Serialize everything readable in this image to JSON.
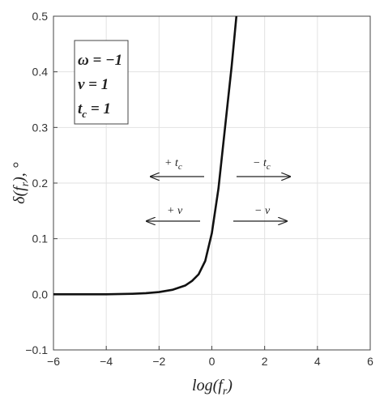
{
  "chart_data": {
    "type": "line",
    "x_label": {
      "main": "log(f",
      "sub": "r",
      "after": ")"
    },
    "y_label": {
      "main": "δ(f",
      "sub": "r",
      "after": "),  °"
    },
    "x": [
      -6,
      -5,
      -4,
      -3,
      -2.5,
      -2,
      -1.5,
      -1,
      -0.75,
      -0.5,
      -0.25,
      0,
      0.25,
      0.5,
      0.75,
      0.93
    ],
    "values": [
      0,
      0,
      0,
      0.001,
      0.002,
      0.004,
      0.008,
      0.016,
      0.024,
      0.036,
      0.06,
      0.11,
      0.19,
      0.3,
      0.41,
      0.5
    ],
    "color": "#111111",
    "xlim": [
      -6,
      6
    ],
    "ylim": [
      -0.1,
      0.5
    ],
    "xticks": [
      {
        "value": -6,
        "label": "−6"
      },
      {
        "value": -4,
        "label": "−4"
      },
      {
        "value": -2,
        "label": "−2"
      },
      0,
      2,
      4,
      6
    ],
    "yticks": [
      {
        "value": -0.1,
        "label": "−0.1"
      },
      {
        "value": 0,
        "label": "0.0"
      },
      0.1,
      0.2,
      0.3,
      0.4,
      0.5
    ],
    "grid": true,
    "legend_box": [
      {
        "main": "ω = −1"
      },
      {
        "main": "ν = 1"
      },
      {
        "main": "t",
        "sub": "c",
        "after": " = 1"
      }
    ],
    "annotations": [
      {
        "main": "+ t",
        "sub": "c"
      },
      {
        "main": "− t",
        "sub": "c"
      },
      {
        "main": "+ ν"
      },
      {
        "main": "− ν"
      }
    ]
  }
}
